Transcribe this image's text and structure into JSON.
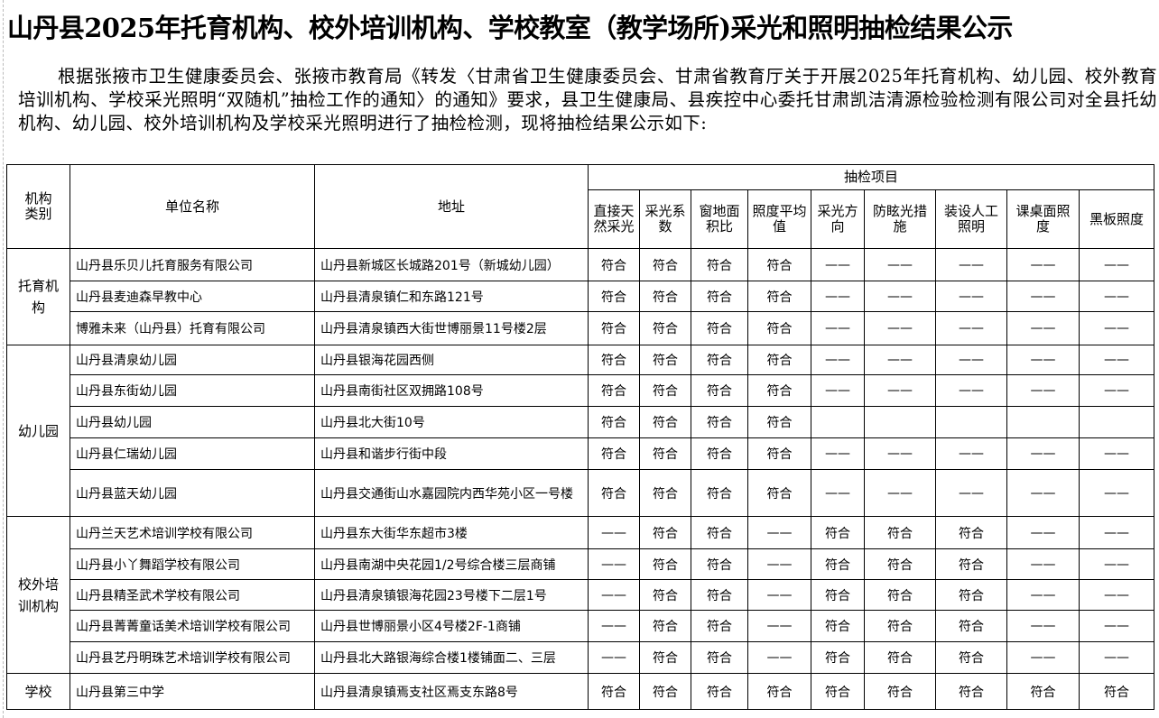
{
  "title": "山丹县2025年托育机构、校外培训机构、学校教室（教学场所)采光和照明抽检结果公示",
  "intro": "根据张掖市卫生健康委员会、张掖市教育局《转发〈甘肃省卫生健康委员会、甘肃省教育厅关于开展2025年托育机构、幼儿园、校外教育培训机构、学校采光照明“双随机”抽检工作的通知〉的通知》要求，县卫生健康局、县疾控中心委托甘肃凯洁清源检验检测有限公司对全县托幼机构、幼儿园、校外培训机构及学校采光照明进行了抽检检测，现将抽检结果公示如下:",
  "table": {
    "headers": {
      "category": "机构类别",
      "name": "单位名称",
      "address": "地址",
      "group": "抽检项目",
      "items": [
        "直接天然采光",
        "采光系数",
        "窗地面积比",
        "照度平均值",
        "采光方向",
        "防眩光措施",
        "装设人工照明",
        "课桌面照度",
        "黑板照度"
      ]
    },
    "groups": [
      {
        "category": "托育机构",
        "rows": [
          {
            "name": "山丹县乐贝儿托育服务有限公司",
            "address": "山丹县新城区长城路201号（新城幼儿园）",
            "results": [
              "符合",
              "符合",
              "符合",
              "符合",
              "——",
              "——",
              "——",
              "——",
              "——"
            ]
          },
          {
            "name": "山丹县麦迪森早教中心",
            "address": "山丹县清泉镇仁和东路121号",
            "results": [
              "符合",
              "符合",
              "符合",
              "符合",
              "——",
              "——",
              "——",
              "——",
              "——"
            ]
          },
          {
            "name": "博雅未来（山丹县）托育有限公司",
            "address": "山丹县清泉镇西大街世博丽景11号楼2层",
            "results": [
              "符合",
              "符合",
              "符合",
              "符合",
              "——",
              "——",
              "——",
              "——",
              "——"
            ]
          }
        ]
      },
      {
        "category": "幼儿园",
        "rows": [
          {
            "name": "山丹县清泉幼儿园",
            "address": "山丹县银海花园西侧",
            "results": [
              "符合",
              "符合",
              "符合",
              "符合",
              "——",
              "——",
              "——",
              "——",
              "——"
            ]
          },
          {
            "name": "山丹县东街幼儿园",
            "address": "山丹县南街社区双拥路108号",
            "results": [
              "符合",
              "符合",
              "符合",
              "符合",
              "——",
              "——",
              "——",
              "——",
              "——"
            ]
          },
          {
            "name": "山丹县幼儿园",
            "address": "山丹县北大街10号",
            "results": [
              "符合",
              "符合",
              "符合",
              "符合",
              "",
              "",
              "",
              "",
              ""
            ]
          },
          {
            "name": "山丹县仁瑞幼儿园",
            "address": "山丹县和谐步行街中段",
            "results": [
              "符合",
              "符合",
              "符合",
              "符合",
              "——",
              "——",
              "——",
              "——",
              "——"
            ]
          },
          {
            "name": "山丹县蓝天幼儿园",
            "address": "山丹县交通街山水嘉园院内西华苑小区一号楼",
            "results": [
              "符合",
              "符合",
              "符合",
              "符合",
              "——",
              "——",
              "——",
              "——",
              "——"
            ]
          }
        ]
      },
      {
        "category": "校外培训机构",
        "rows": [
          {
            "name": "山丹兰天艺术培训学校有限公司",
            "address": "山丹县东大街华东超市3楼",
            "results": [
              "——",
              "符合",
              "符合",
              "——",
              "符合",
              "符合",
              "符合",
              "——",
              "——"
            ]
          },
          {
            "name": "山丹县小丫舞蹈学校有限公司",
            "address": "山丹县南湖中央花园1/2号综合楼三层商铺",
            "results": [
              "——",
              "符合",
              "符合",
              "——",
              "符合",
              "符合",
              "符合",
              "——",
              "——"
            ]
          },
          {
            "name": "山丹县精圣武术学校有限公司",
            "address": "山丹县清泉镇银海花园23号楼下二层1号",
            "results": [
              "——",
              "符合",
              "符合",
              "——",
              "符合",
              "符合",
              "符合",
              "——",
              "——"
            ]
          },
          {
            "name": "山丹县菁菁童话美术培训学校有限公司",
            "address": "山丹县世博丽景小区4号楼2F-1商铺",
            "results": [
              "——",
              "符合",
              "符合",
              "——",
              "符合",
              "符合",
              "符合",
              "——",
              "——"
            ]
          },
          {
            "name": "山丹县艺丹明珠艺术培训学校有限公司",
            "address": "山丹县北大路银海综合楼1楼铺面二、三层",
            "results": [
              "——",
              "符合",
              "符合",
              "——",
              "符合",
              "符合",
              "符合",
              "——",
              "——"
            ]
          }
        ]
      },
      {
        "category": "学校",
        "rows": [
          {
            "name": "山丹县第三中学",
            "address": "山丹县清泉镇焉支社区焉支东路8号",
            "results": [
              "符合",
              "符合",
              "符合",
              "符合",
              "符合",
              "符合",
              "符合",
              "符合",
              "符合"
            ]
          }
        ]
      }
    ]
  }
}
